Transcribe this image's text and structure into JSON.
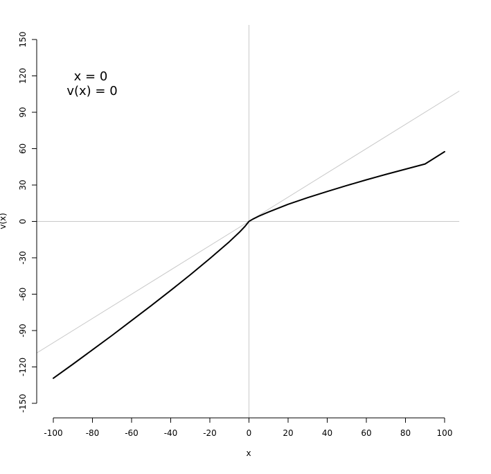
{
  "chart_data": {
    "type": "line",
    "title": "",
    "xlabel": "x",
    "ylabel": "v(x)",
    "xlim": [
      -100,
      100
    ],
    "ylim": [
      -150,
      150
    ],
    "x_ticks": [
      -100,
      -80,
      -60,
      -40,
      -20,
      0,
      20,
      40,
      60,
      80,
      100
    ],
    "y_ticks": [
      -150,
      -120,
      -90,
      -60,
      -30,
      0,
      30,
      60,
      90,
      120,
      150
    ],
    "grid": false,
    "reference_lines": {
      "vertical_x": 0,
      "horizontal_y": 0,
      "diagonal": "y = x",
      "color": "#c8c8c8"
    },
    "series": [
      {
        "color": "#000000",
        "x": [
          -100,
          -90,
          -80,
          -70,
          -60,
          -50,
          -40,
          -30,
          -20,
          -10,
          -5,
          -2,
          0,
          2,
          5,
          10,
          20,
          30,
          40,
          50,
          60,
          70,
          80,
          90,
          100
        ],
        "y": [
          -129.3,
          -117.7,
          -105.9,
          -94.0,
          -81.8,
          -69.5,
          -56.9,
          -44.0,
          -30.6,
          -16.7,
          -9.1,
          -4.0,
          0,
          1.9,
          4.3,
          7.8,
          14.1,
          19.6,
          24.7,
          29.6,
          34.3,
          38.8,
          43.1,
          47.4,
          57.5
        ]
      }
    ],
    "annotations": {
      "line1": "x =  0",
      "line2": "v(x) =  0"
    }
  }
}
